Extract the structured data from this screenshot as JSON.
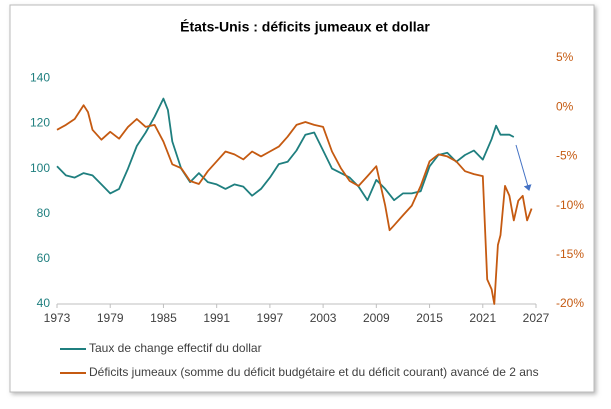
{
  "chart_data": {
    "type": "line",
    "title": "États-Unis : déficits jumeaux et dollar",
    "xlim": [
      1973,
      2027
    ],
    "xticks": [
      1973,
      1979,
      1985,
      1991,
      1997,
      2003,
      2009,
      2015,
      2021,
      2027
    ],
    "ylim": [
      40,
      149
    ],
    "yticks": [
      40,
      60,
      80,
      100,
      120,
      140
    ],
    "y2lim": [
      -20,
      5
    ],
    "y2ticks": [
      {
        "value": -20,
        "label": "-20%"
      },
      {
        "value": -15,
        "label": "-15%"
      },
      {
        "value": -10,
        "label": "-10%"
      },
      {
        "value": -5,
        "label": "-5%"
      },
      {
        "value": 0,
        "label": "0%"
      },
      {
        "value": 5,
        "label": "5%"
      }
    ],
    "grid": false,
    "legend": "bottom",
    "series": [
      {
        "name": "Taux de change effectif du dollar",
        "color": "#1f7f7f",
        "x": [
          1973,
          1974,
          1975,
          1976,
          1977,
          1978,
          1979,
          1980,
          1981,
          1982,
          1983,
          1984,
          1985,
          1985.5,
          1986,
          1987,
          1988,
          1989,
          1990,
          1991,
          1992,
          1993,
          1994,
          1995,
          1996,
          1997,
          1998,
          1999,
          2000,
          2001,
          2002,
          2003,
          2004,
          2005,
          2006,
          2007,
          2008,
          2009,
          2010,
          2011,
          2012,
          2013,
          2014,
          2015,
          2016,
          2017,
          2018,
          2019,
          2020,
          2021,
          2022,
          2022.5,
          2023,
          2024,
          2024.5
        ],
        "values": [
          101,
          97,
          96,
          98,
          97,
          93,
          89,
          91,
          100,
          110,
          116,
          123,
          131,
          126,
          112,
          100,
          94,
          98,
          94,
          93,
          91,
          93,
          92,
          88,
          91,
          96,
          102,
          103,
          108,
          115,
          116,
          108,
          100,
          98,
          96,
          92,
          86,
          95,
          91,
          86,
          89,
          89,
          90,
          101,
          106,
          107,
          103,
          106,
          108,
          104,
          113,
          119,
          115,
          115,
          114
        ]
      },
      {
        "name": "Déficits jumeaux (somme du déficit budgétaire et du déficit courant) avancé de 2 ans",
        "color": "#c55a11",
        "axis": "y2",
        "x": [
          1973,
          1974,
          1975,
          1976,
          1976.5,
          1977,
          1978,
          1979,
          1980,
          1981,
          1982,
          1983,
          1984,
          1985,
          1986,
          1987,
          1988,
          1989,
          1990,
          1991,
          1992,
          1993,
          1994,
          1995,
          1996,
          1997,
          1998,
          1999,
          2000,
          2001,
          2002,
          2003,
          2004,
          2005,
          2006,
          2007,
          2008,
          2009,
          2010,
          2010.5,
          2011,
          2012,
          2013,
          2014,
          2015,
          2016,
          2017,
          2018,
          2019,
          2020,
          2021,
          2021.5,
          2022,
          2022.3,
          2022.7,
          2023,
          2023.5,
          2024,
          2024.5,
          2025,
          2025.5,
          2026,
          2026.5
        ],
        "values": [
          -2.3,
          -1.8,
          -1.2,
          0.2,
          -0.5,
          -2.3,
          -3.3,
          -2.5,
          -3.2,
          -2.0,
          -1.2,
          -2.0,
          -1.8,
          -3.5,
          -5.8,
          -6.2,
          -7.5,
          -7.8,
          -6.5,
          -5.5,
          -4.5,
          -4.8,
          -5.3,
          -4.5,
          -5.0,
          -4.5,
          -4.0,
          -3.0,
          -1.8,
          -1.5,
          -1.8,
          -2.0,
          -4.5,
          -6.2,
          -7.5,
          -8.0,
          -7.0,
          -6.0,
          -10.0,
          -12.5,
          -12.0,
          -11.0,
          -10.0,
          -8.0,
          -5.5,
          -4.8,
          -5.0,
          -5.5,
          -6.5,
          -6.8,
          -7.0,
          -17.5,
          -18.5,
          -20.0,
          -14.0,
          -13.0,
          -8.0,
          -9.0,
          -11.5,
          -9.5,
          -9.0,
          -11.5,
          -10.3
        ]
      }
    ]
  }
}
